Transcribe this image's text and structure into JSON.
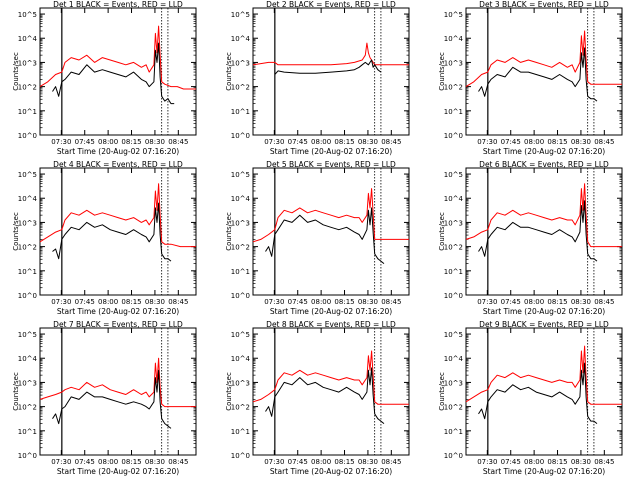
{
  "colors": {
    "events": "#000000",
    "lld": "#ff0000",
    "axes": "#000000",
    "background": "#ffffff"
  },
  "common": {
    "ylabel": "Counts/sec",
    "xlabel": "Start Time (20-Aug-02 07:16:20)",
    "x_ticks": [
      "07:30",
      "07:45",
      "08:00",
      "08:15",
      "08:30",
      "08:45"
    ],
    "y_ticks": [
      "10^0",
      "10^1",
      "10^2",
      "10^3",
      "10^4",
      "10^5"
    ],
    "y_tick_values": [
      0,
      1,
      2,
      3,
      4,
      5
    ],
    "x_range_min": [
      0,
      100
    ],
    "x_tick_positions_min": [
      13.67,
      28.67,
      43.67,
      58.67,
      73.67,
      88.67
    ],
    "y_range_log10": [
      0,
      5.25
    ],
    "marker_lines_min": [
      14,
      78,
      82
    ]
  },
  "chart_data": [
    {
      "type": "line",
      "title": "Det 1 BLACK = Events, RED = LLD",
      "scale": "log",
      "series": [
        {
          "name": "Events",
          "color": "#000000",
          "x": [
            8,
            10,
            12,
            14,
            16,
            20,
            25,
            30,
            35,
            40,
            45,
            50,
            55,
            60,
            65,
            68,
            70,
            73,
            74,
            75,
            76,
            77,
            78,
            80,
            82,
            84,
            86
          ],
          "y": [
            1.8,
            2.0,
            1.6,
            2.2,
            2.3,
            2.6,
            2.5,
            2.9,
            2.6,
            2.7,
            2.6,
            2.5,
            2.4,
            2.6,
            2.3,
            2.2,
            2.0,
            2.2,
            3.5,
            3.0,
            3.8,
            2.4,
            1.6,
            1.4,
            1.5,
            1.3,
            1.3
          ]
        },
        {
          "name": "LLD",
          "color": "#ff0000",
          "x": [
            0,
            5,
            10,
            14,
            16,
            20,
            25,
            30,
            35,
            40,
            45,
            50,
            55,
            60,
            65,
            68,
            70,
            73,
            74,
            75,
            76,
            77,
            78,
            80,
            84,
            88,
            92,
            96,
            100
          ],
          "y": [
            2.0,
            2.2,
            2.5,
            2.6,
            3.0,
            3.2,
            3.1,
            3.3,
            3.0,
            3.2,
            3.1,
            3.0,
            2.9,
            3.0,
            2.8,
            2.9,
            2.6,
            2.9,
            4.2,
            3.4,
            4.5,
            3.3,
            2.2,
            2.1,
            2.0,
            2.0,
            1.9,
            1.9,
            1.9
          ]
        }
      ]
    },
    {
      "type": "line",
      "title": "Det 2 BLACK = Events, RED = LLD",
      "scale": "log",
      "series": [
        {
          "name": "Events",
          "color": "#000000",
          "x": [
            14,
            16,
            20,
            30,
            40,
            50,
            60,
            65,
            68,
            70,
            72,
            74,
            75,
            76,
            77,
            78,
            80,
            82
          ],
          "y": [
            2.5,
            2.65,
            2.6,
            2.55,
            2.55,
            2.6,
            2.65,
            2.7,
            2.8,
            2.9,
            3.0,
            2.9,
            3.0,
            3.1,
            2.8,
            2.9,
            2.7,
            2.6
          ]
        },
        {
          "name": "LLD",
          "color": "#ff0000",
          "x": [
            0,
            5,
            10,
            14,
            16,
            20,
            30,
            40,
            50,
            60,
            65,
            70,
            72,
            73,
            74,
            75,
            76,
            77,
            78,
            80,
            84,
            90,
            100
          ],
          "y": [
            2.9,
            2.95,
            3.0,
            3.0,
            2.9,
            2.9,
            2.9,
            2.9,
            2.9,
            2.95,
            3.0,
            3.1,
            3.3,
            3.8,
            3.4,
            3.2,
            3.1,
            3.0,
            2.9,
            2.9,
            2.9,
            2.9,
            2.9
          ]
        }
      ]
    },
    {
      "type": "line",
      "title": "Det 3 BLACK = Events, RED = LLD",
      "scale": "log",
      "series": [
        {
          "name": "Events",
          "color": "#000000",
          "x": [
            8,
            10,
            12,
            14,
            16,
            20,
            25,
            30,
            35,
            40,
            45,
            50,
            55,
            60,
            65,
            68,
            70,
            73,
            74,
            75,
            76,
            77,
            78,
            80,
            82,
            84
          ],
          "y": [
            1.8,
            2.0,
            1.6,
            2.1,
            2.3,
            2.5,
            2.4,
            2.8,
            2.6,
            2.6,
            2.5,
            2.4,
            2.3,
            2.5,
            2.3,
            2.2,
            2.0,
            2.3,
            3.4,
            2.8,
            3.6,
            2.3,
            1.6,
            1.5,
            1.5,
            1.4
          ]
        },
        {
          "name": "LLD",
          "color": "#ff0000",
          "x": [
            0,
            5,
            10,
            14,
            16,
            20,
            25,
            30,
            35,
            40,
            45,
            50,
            55,
            60,
            65,
            68,
            70,
            73,
            74,
            75,
            76,
            77,
            78,
            80,
            84,
            90,
            100
          ],
          "y": [
            2.0,
            2.2,
            2.5,
            2.6,
            2.9,
            3.1,
            3.0,
            3.2,
            3.0,
            3.1,
            3.0,
            2.9,
            2.8,
            3.0,
            2.8,
            2.9,
            2.6,
            3.0,
            4.1,
            3.3,
            4.3,
            3.1,
            2.2,
            2.1,
            2.1,
            2.1,
            2.1
          ]
        }
      ]
    },
    {
      "type": "line",
      "title": "Det 4 BLACK = Events, RED = LLD",
      "scale": "log",
      "series": [
        {
          "name": "Events",
          "color": "#000000",
          "x": [
            8,
            10,
            12,
            14,
            16,
            20,
            25,
            30,
            35,
            40,
            45,
            50,
            55,
            60,
            65,
            68,
            70,
            73,
            74,
            75,
            76,
            77,
            78,
            80,
            82,
            84
          ],
          "y": [
            1.8,
            1.9,
            1.5,
            2.3,
            2.5,
            2.8,
            2.7,
            3.0,
            2.8,
            2.9,
            2.7,
            2.6,
            2.5,
            2.7,
            2.5,
            2.4,
            2.2,
            2.5,
            3.6,
            3.0,
            3.8,
            2.5,
            1.7,
            1.5,
            1.5,
            1.4
          ]
        },
        {
          "name": "LLD",
          "color": "#ff0000",
          "x": [
            0,
            5,
            10,
            14,
            16,
            20,
            25,
            30,
            35,
            40,
            45,
            50,
            55,
            60,
            65,
            68,
            70,
            73,
            74,
            75,
            76,
            77,
            78,
            80,
            84,
            90,
            100
          ],
          "y": [
            2.2,
            2.4,
            2.6,
            2.7,
            3.1,
            3.4,
            3.3,
            3.5,
            3.3,
            3.4,
            3.3,
            3.2,
            3.1,
            3.2,
            3.0,
            3.1,
            2.9,
            3.2,
            4.3,
            3.5,
            4.6,
            3.3,
            2.2,
            2.1,
            2.1,
            2.0,
            2.0
          ]
        }
      ]
    },
    {
      "type": "line",
      "title": "Det 5 BLACK = Events, RED = LLD",
      "scale": "log",
      "series": [
        {
          "name": "Events",
          "color": "#000000",
          "x": [
            8,
            10,
            12,
            14,
            16,
            20,
            25,
            30,
            35,
            40,
            45,
            50,
            55,
            60,
            65,
            68,
            70,
            73,
            74,
            75,
            76,
            77,
            78,
            80,
            82,
            84
          ],
          "y": [
            1.8,
            2.0,
            1.6,
            2.5,
            2.7,
            3.1,
            3.0,
            3.3,
            3.0,
            3.1,
            2.9,
            2.8,
            2.7,
            2.8,
            2.6,
            2.5,
            2.3,
            2.7,
            3.5,
            2.9,
            3.6,
            2.6,
            1.7,
            1.5,
            1.4,
            1.3
          ]
        },
        {
          "name": "LLD",
          "color": "#ff0000",
          "x": [
            0,
            5,
            10,
            14,
            16,
            20,
            25,
            30,
            35,
            40,
            45,
            50,
            55,
            60,
            65,
            68,
            70,
            73,
            74,
            75,
            76,
            77,
            78,
            80,
            84,
            90,
            100
          ],
          "y": [
            2.2,
            2.3,
            2.5,
            2.7,
            3.2,
            3.5,
            3.4,
            3.6,
            3.4,
            3.5,
            3.4,
            3.3,
            3.2,
            3.3,
            3.2,
            3.2,
            3.0,
            3.3,
            4.2,
            3.6,
            4.4,
            3.4,
            2.3,
            2.3,
            2.3,
            2.3,
            2.3
          ]
        }
      ]
    },
    {
      "type": "line",
      "title": "Det 6 BLACK = Events, RED = LLD",
      "scale": "log",
      "series": [
        {
          "name": "Events",
          "color": "#000000",
          "x": [
            8,
            10,
            12,
            14,
            16,
            20,
            25,
            30,
            35,
            40,
            45,
            50,
            55,
            60,
            65,
            68,
            70,
            73,
            74,
            75,
            76,
            77,
            78,
            80,
            82,
            84
          ],
          "y": [
            1.8,
            2.0,
            1.6,
            2.3,
            2.5,
            2.8,
            2.7,
            3.0,
            2.8,
            2.8,
            2.7,
            2.6,
            2.5,
            2.7,
            2.5,
            2.4,
            2.2,
            2.6,
            3.7,
            3.0,
            3.9,
            2.5,
            1.7,
            1.5,
            1.5,
            1.4
          ]
        },
        {
          "name": "LLD",
          "color": "#ff0000",
          "x": [
            0,
            5,
            10,
            14,
            16,
            20,
            25,
            30,
            35,
            40,
            45,
            50,
            55,
            60,
            65,
            68,
            70,
            73,
            74,
            75,
            76,
            77,
            78,
            80,
            84,
            90,
            100
          ],
          "y": [
            2.3,
            2.4,
            2.6,
            2.7,
            3.1,
            3.4,
            3.3,
            3.5,
            3.3,
            3.4,
            3.3,
            3.2,
            3.1,
            3.2,
            3.1,
            3.1,
            2.9,
            3.3,
            4.4,
            3.5,
            4.6,
            3.3,
            2.2,
            2.0,
            2.0,
            2.0,
            2.0
          ]
        }
      ]
    },
    {
      "type": "line",
      "title": "Det 7 BLACK = Events, RED = LLD",
      "scale": "log",
      "series": [
        {
          "name": "Events",
          "color": "#000000",
          "x": [
            8,
            10,
            12,
            14,
            16,
            20,
            25,
            30,
            35,
            40,
            45,
            50,
            55,
            60,
            65,
            68,
            70,
            73,
            74,
            75,
            76,
            77,
            78,
            80,
            82,
            84
          ],
          "y": [
            1.5,
            1.7,
            1.3,
            1.9,
            2.0,
            2.4,
            2.3,
            2.6,
            2.4,
            2.4,
            2.3,
            2.2,
            2.1,
            2.2,
            2.1,
            2.0,
            1.9,
            2.2,
            3.2,
            2.6,
            3.5,
            2.2,
            1.5,
            1.3,
            1.2,
            1.1
          ]
        },
        {
          "name": "LLD",
          "color": "#ff0000",
          "x": [
            0,
            5,
            10,
            14,
            16,
            20,
            25,
            30,
            35,
            40,
            45,
            50,
            55,
            60,
            65,
            68,
            70,
            73,
            74,
            75,
            76,
            77,
            78,
            80,
            84,
            90,
            100
          ],
          "y": [
            2.3,
            2.4,
            2.5,
            2.6,
            2.7,
            2.8,
            2.7,
            3.0,
            2.8,
            2.9,
            2.7,
            2.6,
            2.5,
            2.7,
            2.5,
            2.6,
            2.4,
            2.6,
            3.8,
            3.0,
            4.0,
            2.8,
            2.1,
            2.0,
            2.0,
            2.0,
            2.0
          ]
        }
      ]
    },
    {
      "type": "line",
      "title": "Det 8 BLACK = Events, RED = LLD",
      "scale": "log",
      "series": [
        {
          "name": "Events",
          "color": "#000000",
          "x": [
            8,
            10,
            12,
            14,
            16,
            20,
            25,
            30,
            35,
            40,
            45,
            50,
            55,
            60,
            65,
            68,
            70,
            73,
            74,
            75,
            76,
            77,
            78,
            80,
            82,
            84
          ],
          "y": [
            1.8,
            2.0,
            1.6,
            2.4,
            2.6,
            3.0,
            2.9,
            3.2,
            2.9,
            3.0,
            2.8,
            2.7,
            2.6,
            2.8,
            2.6,
            2.5,
            2.3,
            2.6,
            3.5,
            2.9,
            3.6,
            2.5,
            1.7,
            1.5,
            1.4,
            1.3
          ]
        },
        {
          "name": "LLD",
          "color": "#ff0000",
          "x": [
            0,
            5,
            10,
            14,
            16,
            20,
            25,
            30,
            35,
            40,
            45,
            50,
            55,
            60,
            65,
            68,
            70,
            73,
            74,
            75,
            76,
            77,
            78,
            80,
            84,
            90,
            100
          ],
          "y": [
            2.2,
            2.3,
            2.5,
            2.7,
            3.1,
            3.4,
            3.3,
            3.5,
            3.3,
            3.4,
            3.3,
            3.2,
            3.1,
            3.2,
            3.1,
            3.1,
            2.9,
            3.2,
            4.1,
            3.5,
            4.3,
            3.3,
            2.2,
            2.1,
            2.1,
            2.1,
            2.1
          ]
        }
      ]
    },
    {
      "type": "line",
      "title": "Det 9 BLACK = Events, RED = LLD",
      "scale": "log",
      "series": [
        {
          "name": "Events",
          "color": "#000000",
          "x": [
            8,
            10,
            12,
            14,
            16,
            20,
            25,
            30,
            35,
            40,
            45,
            50,
            55,
            60,
            65,
            68,
            70,
            73,
            74,
            75,
            76,
            77,
            78,
            80,
            82,
            84
          ],
          "y": [
            1.7,
            1.9,
            1.5,
            2.2,
            2.4,
            2.7,
            2.6,
            2.9,
            2.7,
            2.8,
            2.6,
            2.5,
            2.4,
            2.6,
            2.4,
            2.3,
            2.1,
            2.4,
            3.5,
            2.9,
            3.8,
            2.4,
            1.6,
            1.4,
            1.4,
            1.3
          ]
        },
        {
          "name": "LLD",
          "color": "#ff0000",
          "x": [
            0,
            5,
            10,
            14,
            16,
            20,
            25,
            30,
            35,
            40,
            45,
            50,
            55,
            60,
            65,
            68,
            70,
            73,
            74,
            75,
            76,
            77,
            78,
            80,
            84,
            90,
            100
          ],
          "y": [
            2.2,
            2.4,
            2.6,
            2.7,
            3.0,
            3.3,
            3.2,
            3.4,
            3.2,
            3.3,
            3.2,
            3.1,
            3.0,
            3.1,
            3.0,
            3.0,
            2.8,
            3.1,
            4.3,
            3.4,
            4.5,
            3.2,
            2.2,
            2.1,
            2.1,
            2.1,
            2.1
          ]
        }
      ]
    }
  ]
}
